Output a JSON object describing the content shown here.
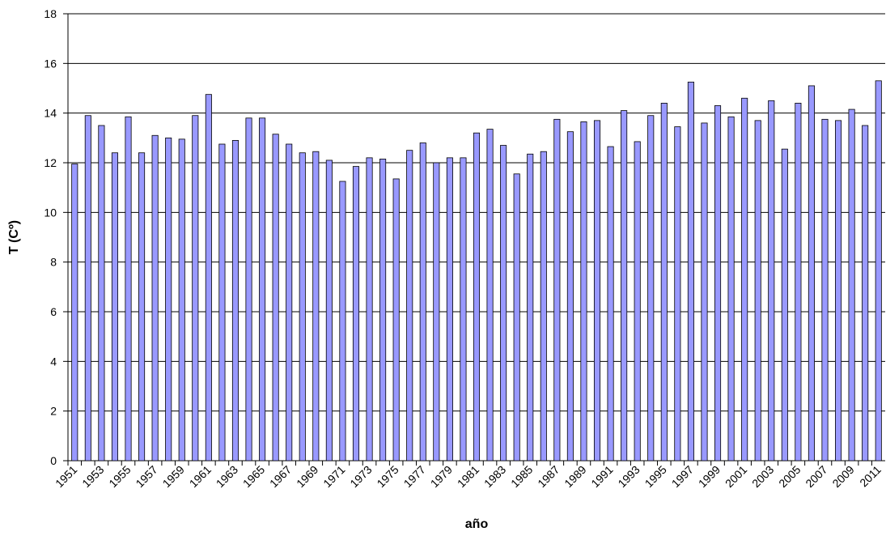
{
  "chart_data": {
    "type": "bar",
    "x_label": "año",
    "y_label": "T (Cº)",
    "categories": [
      "1951",
      null,
      "1953",
      null,
      "1955",
      null,
      "1957",
      null,
      "1959",
      null,
      "1961",
      null,
      "1963",
      null,
      "1965",
      null,
      "1967",
      null,
      "1969",
      null,
      "1971",
      null,
      "1973",
      null,
      "1975",
      null,
      "1977",
      null,
      "1979",
      null,
      "1981",
      null,
      "1983",
      null,
      "1985",
      null,
      "1987",
      null,
      "1989",
      null,
      "1991",
      null,
      "1993",
      null,
      "1995",
      null,
      "1997",
      null,
      "1999",
      null,
      "2001",
      null,
      "2003",
      null,
      "2005",
      null,
      "2007",
      null,
      "2009",
      null,
      "2011"
    ],
    "values": [
      11.95,
      13.9,
      13.5,
      12.4,
      13.85,
      12.4,
      13.1,
      13.0,
      12.95,
      13.9,
      14.75,
      12.75,
      12.9,
      13.8,
      13.8,
      13.15,
      12.75,
      12.4,
      12.45,
      12.1,
      11.25,
      11.85,
      12.2,
      12.15,
      11.35,
      12.5,
      12.8,
      12.0,
      12.2,
      12.2,
      13.2,
      13.35,
      12.7,
      11.55,
      12.35,
      12.45,
      13.75,
      13.25,
      13.65,
      13.7,
      12.65,
      14.1,
      12.85,
      13.9,
      14.4,
      13.45,
      15.25,
      13.6,
      14.3,
      13.85,
      14.6,
      13.7,
      14.5,
      12.55,
      14.4,
      15.1,
      13.75,
      13.7,
      14.15,
      13.5,
      15.3
    ],
    "color": "#9999ff",
    "ylim": [
      0,
      18
    ],
    "yticks": [
      0,
      2,
      4,
      6,
      8,
      10,
      12,
      14,
      16,
      18
    ],
    "grid": true
  }
}
